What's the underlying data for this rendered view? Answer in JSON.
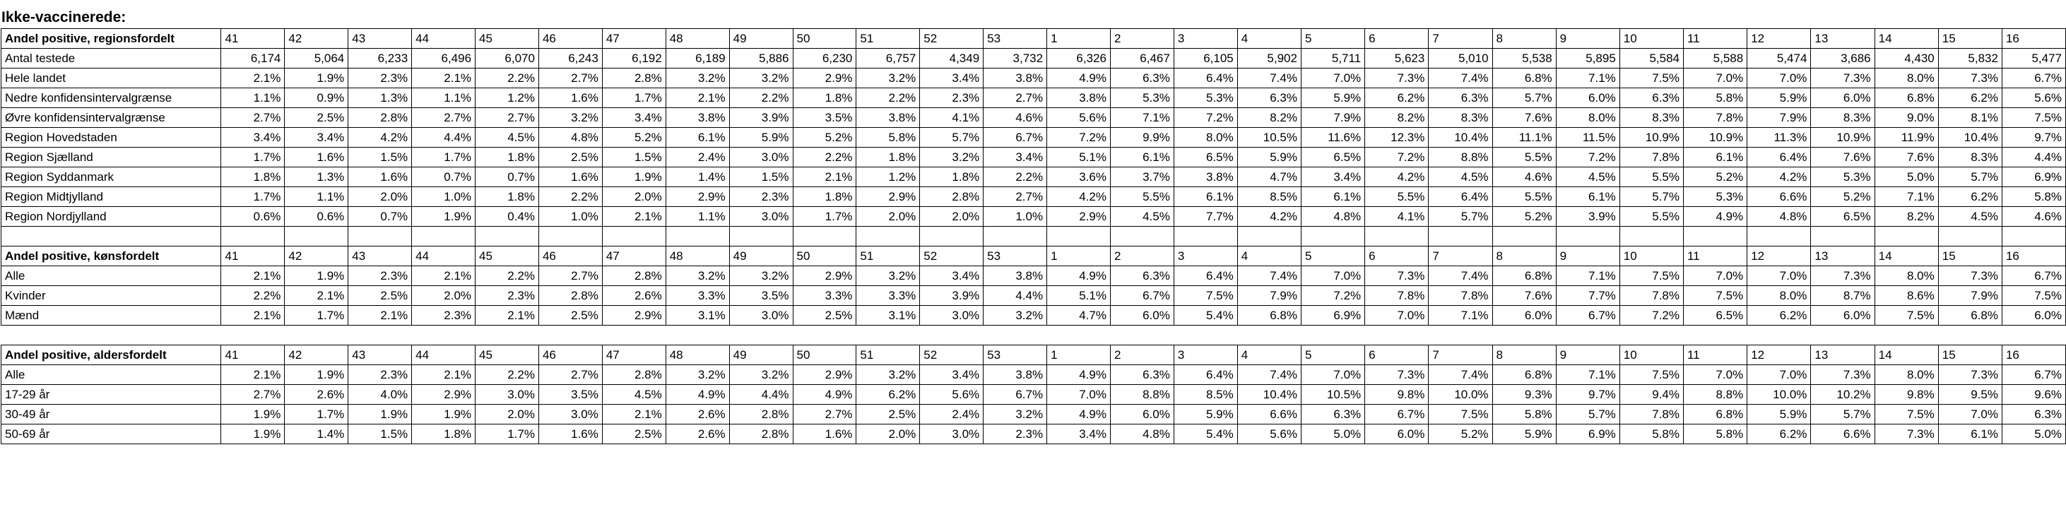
{
  "heading": "Ikke-vaccinerede:",
  "weeks": [
    "41",
    "42",
    "43",
    "44",
    "45",
    "46",
    "47",
    "48",
    "49",
    "50",
    "51",
    "52",
    "53",
    "1",
    "2",
    "3",
    "4",
    "5",
    "6",
    "7",
    "8",
    "9",
    "10",
    "11",
    "12",
    "13",
    "14",
    "15",
    "16"
  ],
  "sections": [
    {
      "title": "Andel positive, regionsfordelt",
      "rows": [
        {
          "label": "Antal testede",
          "values": [
            "6,174",
            "5,064",
            "6,233",
            "6,496",
            "6,070",
            "6,243",
            "6,192",
            "6,189",
            "5,886",
            "6,230",
            "6,757",
            "4,349",
            "3,732",
            "6,326",
            "6,467",
            "6,105",
            "5,902",
            "5,711",
            "5,623",
            "5,010",
            "5,538",
            "5,895",
            "5,584",
            "5,588",
            "5,474",
            "3,686",
            "4,430",
            "5,832",
            "5,477"
          ]
        },
        {
          "label": "Hele landet",
          "values": [
            "2.1%",
            "1.9%",
            "2.3%",
            "2.1%",
            "2.2%",
            "2.7%",
            "2.8%",
            "3.2%",
            "3.2%",
            "2.9%",
            "3.2%",
            "3.4%",
            "3.8%",
            "4.9%",
            "6.3%",
            "6.4%",
            "7.4%",
            "7.0%",
            "7.3%",
            "7.4%",
            "6.8%",
            "7.1%",
            "7.5%",
            "7.0%",
            "7.0%",
            "7.3%",
            "8.0%",
            "7.3%",
            "6.7%"
          ]
        },
        {
          "label": "Nedre konfidensintervalgrænse",
          "values": [
            "1.1%",
            "0.9%",
            "1.3%",
            "1.1%",
            "1.2%",
            "1.6%",
            "1.7%",
            "2.1%",
            "2.2%",
            "1.8%",
            "2.2%",
            "2.3%",
            "2.7%",
            "3.8%",
            "5.3%",
            "5.3%",
            "6.3%",
            "5.9%",
            "6.2%",
            "6.3%",
            "5.7%",
            "6.0%",
            "6.3%",
            "5.8%",
            "5.9%",
            "6.0%",
            "6.8%",
            "6.2%",
            "5.6%"
          ]
        },
        {
          "label": "Øvre konfidensintervalgrænse",
          "values": [
            "2.7%",
            "2.5%",
            "2.8%",
            "2.7%",
            "2.7%",
            "3.2%",
            "3.4%",
            "3.8%",
            "3.9%",
            "3.5%",
            "3.8%",
            "4.1%",
            "4.6%",
            "5.6%",
            "7.1%",
            "7.2%",
            "8.2%",
            "7.9%",
            "8.2%",
            "8.3%",
            "7.6%",
            "8.0%",
            "8.3%",
            "7.8%",
            "7.9%",
            "8.3%",
            "9.0%",
            "8.1%",
            "7.5%"
          ]
        },
        {
          "label": "Region Hovedstaden",
          "values": [
            "3.4%",
            "3.4%",
            "4.2%",
            "4.4%",
            "4.5%",
            "4.8%",
            "5.2%",
            "6.1%",
            "5.9%",
            "5.2%",
            "5.8%",
            "5.7%",
            "6.7%",
            "7.2%",
            "9.9%",
            "8.0%",
            "10.5%",
            "11.6%",
            "12.3%",
            "10.4%",
            "11.1%",
            "11.5%",
            "10.9%",
            "10.9%",
            "11.3%",
            "10.9%",
            "11.9%",
            "10.4%",
            "9.7%"
          ]
        },
        {
          "label": "Region Sjælland",
          "values": [
            "1.7%",
            "1.6%",
            "1.5%",
            "1.7%",
            "1.8%",
            "2.5%",
            "1.5%",
            "2.4%",
            "3.0%",
            "2.2%",
            "1.8%",
            "3.2%",
            "3.4%",
            "5.1%",
            "6.1%",
            "6.5%",
            "5.9%",
            "6.5%",
            "7.2%",
            "8.8%",
            "5.5%",
            "7.2%",
            "7.8%",
            "6.1%",
            "6.4%",
            "7.6%",
            "7.6%",
            "8.3%",
            "4.4%"
          ]
        },
        {
          "label": "Region Syddanmark",
          "values": [
            "1.8%",
            "1.3%",
            "1.6%",
            "0.7%",
            "0.7%",
            "1.6%",
            "1.9%",
            "1.4%",
            "1.5%",
            "2.1%",
            "1.2%",
            "1.8%",
            "2.2%",
            "3.6%",
            "3.7%",
            "3.8%",
            "4.7%",
            "3.4%",
            "4.2%",
            "4.5%",
            "4.6%",
            "4.5%",
            "5.5%",
            "5.2%",
            "4.2%",
            "5.3%",
            "5.0%",
            "5.7%",
            "6.9%"
          ]
        },
        {
          "label": "Region Midtjylland",
          "values": [
            "1.7%",
            "1.1%",
            "2.0%",
            "1.0%",
            "1.8%",
            "2.2%",
            "2.0%",
            "2.9%",
            "2.3%",
            "1.8%",
            "2.9%",
            "2.8%",
            "2.7%",
            "4.2%",
            "5.5%",
            "6.1%",
            "8.5%",
            "6.1%",
            "5.5%",
            "6.4%",
            "5.5%",
            "6.1%",
            "5.7%",
            "5.3%",
            "6.6%",
            "5.2%",
            "7.1%",
            "6.2%",
            "5.8%"
          ]
        },
        {
          "label": "Region Nordjylland",
          "values": [
            "0.6%",
            "0.6%",
            "0.7%",
            "1.9%",
            "0.4%",
            "1.0%",
            "2.1%",
            "1.1%",
            "3.0%",
            "1.7%",
            "2.0%",
            "2.0%",
            "1.0%",
            "2.9%",
            "4.5%",
            "7.7%",
            "4.2%",
            "4.8%",
            "4.1%",
            "5.7%",
            "5.2%",
            "3.9%",
            "5.5%",
            "4.9%",
            "4.8%",
            "6.5%",
            "8.2%",
            "4.5%",
            "4.6%"
          ]
        }
      ]
    },
    {
      "title": "Andel positive, kønsfordelt",
      "rows": [
        {
          "label": "Alle",
          "values": [
            "2.1%",
            "1.9%",
            "2.3%",
            "2.1%",
            "2.2%",
            "2.7%",
            "2.8%",
            "3.2%",
            "3.2%",
            "2.9%",
            "3.2%",
            "3.4%",
            "3.8%",
            "4.9%",
            "6.3%",
            "6.4%",
            "7.4%",
            "7.0%",
            "7.3%",
            "7.4%",
            "6.8%",
            "7.1%",
            "7.5%",
            "7.0%",
            "7.0%",
            "7.3%",
            "8.0%",
            "7.3%",
            "6.7%"
          ]
        },
        {
          "label": "Kvinder",
          "values": [
            "2.2%",
            "2.1%",
            "2.5%",
            "2.0%",
            "2.3%",
            "2.8%",
            "2.6%",
            "3.3%",
            "3.5%",
            "3.3%",
            "3.3%",
            "3.9%",
            "4.4%",
            "5.1%",
            "6.7%",
            "7.5%",
            "7.9%",
            "7.2%",
            "7.8%",
            "7.8%",
            "7.6%",
            "7.7%",
            "7.8%",
            "7.5%",
            "8.0%",
            "8.7%",
            "8.6%",
            "7.9%",
            "7.5%"
          ]
        },
        {
          "label": "Mænd",
          "values": [
            "2.1%",
            "1.7%",
            "2.1%",
            "2.3%",
            "2.1%",
            "2.5%",
            "2.9%",
            "3.1%",
            "3.0%",
            "2.5%",
            "3.1%",
            "3.0%",
            "3.2%",
            "4.7%",
            "6.0%",
            "5.4%",
            "6.8%",
            "6.9%",
            "7.0%",
            "7.1%",
            "6.0%",
            "6.7%",
            "7.2%",
            "6.5%",
            "6.2%",
            "6.0%",
            "7.5%",
            "6.8%",
            "6.0%"
          ]
        }
      ]
    },
    {
      "title": "Andel positive, aldersfordelt",
      "rows": [
        {
          "label": "Alle",
          "values": [
            "2.1%",
            "1.9%",
            "2.3%",
            "2.1%",
            "2.2%",
            "2.7%",
            "2.8%",
            "3.2%",
            "3.2%",
            "2.9%",
            "3.2%",
            "3.4%",
            "3.8%",
            "4.9%",
            "6.3%",
            "6.4%",
            "7.4%",
            "7.0%",
            "7.3%",
            "7.4%",
            "6.8%",
            "7.1%",
            "7.5%",
            "7.0%",
            "7.0%",
            "7.3%",
            "8.0%",
            "7.3%",
            "6.7%"
          ]
        },
        {
          "label": "17-29 år",
          "values": [
            "2.7%",
            "2.6%",
            "4.0%",
            "2.9%",
            "3.0%",
            "3.5%",
            "4.5%",
            "4.9%",
            "4.4%",
            "4.9%",
            "6.2%",
            "5.6%",
            "6.7%",
            "7.0%",
            "8.8%",
            "8.5%",
            "10.4%",
            "10.5%",
            "9.8%",
            "10.0%",
            "9.3%",
            "9.7%",
            "9.4%",
            "8.8%",
            "10.0%",
            "10.2%",
            "9.8%",
            "9.5%",
            "9.6%"
          ]
        },
        {
          "label": "30-49 år",
          "values": [
            "1.9%",
            "1.7%",
            "1.9%",
            "1.9%",
            "2.0%",
            "3.0%",
            "2.1%",
            "2.6%",
            "2.8%",
            "2.7%",
            "2.5%",
            "2.4%",
            "3.2%",
            "4.9%",
            "6.0%",
            "5.9%",
            "6.6%",
            "6.3%",
            "6.7%",
            "7.5%",
            "5.8%",
            "5.7%",
            "7.8%",
            "6.8%",
            "5.9%",
            "5.7%",
            "7.5%",
            "7.0%",
            "6.3%"
          ]
        },
        {
          "label": "50-69 år",
          "values": [
            "1.9%",
            "1.4%",
            "1.5%",
            "1.8%",
            "1.7%",
            "1.6%",
            "2.5%",
            "2.6%",
            "2.8%",
            "1.6%",
            "2.0%",
            "3.0%",
            "2.3%",
            "3.4%",
            "4.8%",
            "5.4%",
            "5.6%",
            "5.0%",
            "6.0%",
            "5.2%",
            "5.9%",
            "6.9%",
            "5.8%",
            "5.8%",
            "6.2%",
            "6.6%",
            "7.3%",
            "6.1%",
            "5.0%"
          ]
        }
      ]
    }
  ]
}
